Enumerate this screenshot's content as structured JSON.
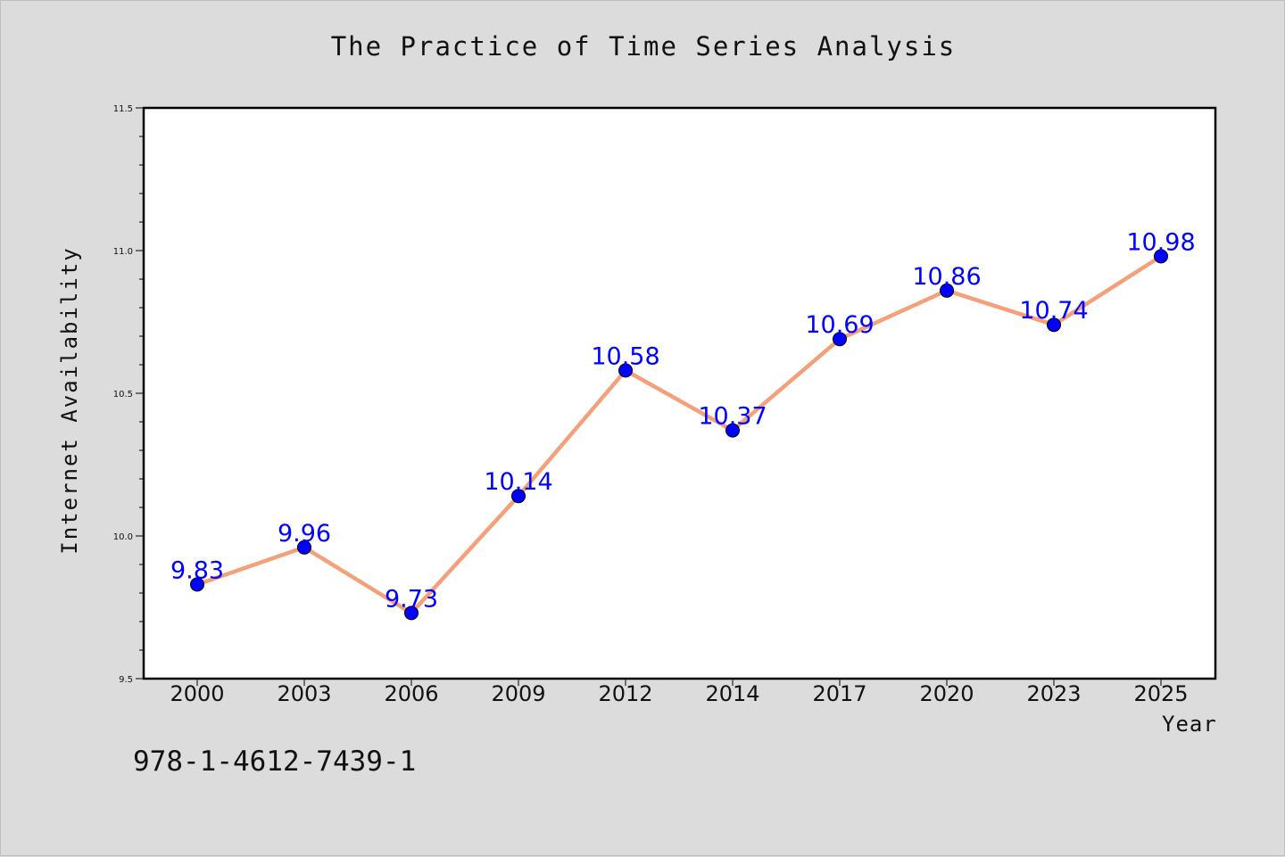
{
  "chart_data": {
    "type": "line",
    "title": "The Practice of Time Series Analysis",
    "xlabel": "Year",
    "ylabel": "Internet Availability",
    "categories": [
      "2000",
      "2003",
      "2006",
      "2009",
      "2012",
      "2014",
      "2017",
      "2020",
      "2023",
      "2025"
    ],
    "series": [
      {
        "values": [
          9.83,
          9.96,
          9.73,
          10.14,
          10.58,
          10.37,
          10.69,
          10.86,
          10.74,
          10.98
        ],
        "line_color": "#f4a07a",
        "marker_color": "#0000ff",
        "label_color": "#0000ff"
      }
    ],
    "ylim": [
      9.5,
      11.5
    ],
    "yticks": [
      "9.5",
      "10.0",
      "10.5",
      "11.0",
      "11.5"
    ],
    "grid": false,
    "legend": false
  },
  "footer": {
    "isbn": "978-1-4612-7439-1"
  }
}
